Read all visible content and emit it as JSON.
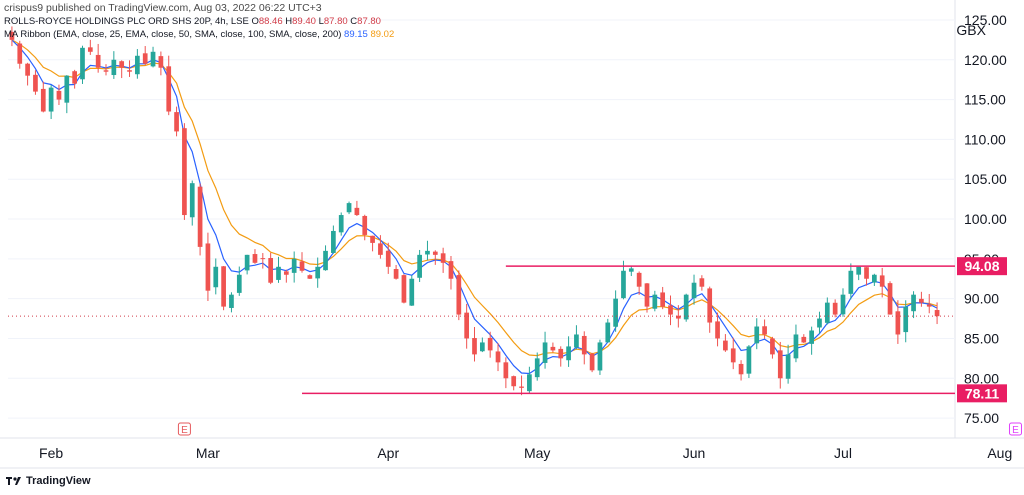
{
  "publisher_line": "crispus9 published on TradingView.com, Aug 03, 2022 06:22 UTC+3",
  "symbol_line": {
    "name": "ROLLS-ROYCE HOLDINGS PLC ORD SHS 20P, 4h, LSE",
    "o_label": "O",
    "o": "88.46",
    "h_label": "H",
    "h": "89.40",
    "l_label": "L",
    "l": "87.80",
    "c_label": "C",
    "c": "87.80"
  },
  "ma_line": {
    "label": "MA Ribbon (EMA, close, 25, EMA, close, 50, SMA, close, 100, SMA, close, 200)",
    "v1": "89.15",
    "v2": "89.02"
  },
  "footer_brand": "TradingView",
  "colors": {
    "up": "#26a69a",
    "down": "#ef5350",
    "ema": "#2962ff",
    "sma": "#f39c12",
    "level": "#e91e63",
    "level_label_bg": "#e91e63",
    "price_marker": "#d13b47",
    "grid": "#f0f3fa",
    "earnings": "#e5595c",
    "earnings_future": "#e040fb"
  },
  "chart_data": {
    "type": "candlestick",
    "currency": "GBX",
    "ylim": [
      72.5,
      126.5
    ],
    "y_ticks": [
      "125.00",
      "120.00",
      "115.00",
      "110.00",
      "105.00",
      "100.00",
      "95.00",
      "90.00",
      "85.00",
      "80.00",
      "75.00"
    ],
    "y_tick_values": [
      125,
      120,
      115,
      110,
      105,
      100,
      95,
      90,
      85,
      80,
      75
    ],
    "x_labels": [
      "Feb",
      "Mar",
      "Apr",
      "May",
      "Jun",
      "Jul",
      "Aug"
    ],
    "x_label_index": [
      5,
      25,
      48,
      67,
      87,
      106,
      126
    ],
    "levels": [
      {
        "value": 94.08,
        "label": "94.08",
        "start_index": 63
      },
      {
        "value": 78.11,
        "label": "78.11",
        "start_index": 37
      }
    ],
    "last_price": 87.8,
    "earnings_markers": [
      {
        "index": 22,
        "label": "E",
        "future": false
      },
      {
        "index": 128,
        "label": "E",
        "future": true
      }
    ],
    "close": [
      122.5,
      119.5,
      118.0,
      116.0,
      113.5,
      116.5,
      115.0,
      118.0,
      117.0,
      121.5,
      121.0,
      119.0,
      118.5,
      120.0,
      119.0,
      118.5,
      120.5,
      119.5,
      121.0,
      119.0,
      113.5,
      111.0,
      100.5,
      104.5,
      96.5,
      91.0,
      94.0,
      89.0,
      90.5,
      93.0,
      95.5,
      94.5,
      95.0,
      92.0,
      94.0,
      93.0,
      95.0,
      93.5,
      92.5,
      94.0,
      96.0,
      98.5,
      100.5,
      102.0,
      100.5,
      98.0,
      97.0,
      95.5,
      94.0,
      92.5,
      89.5,
      92.5,
      95.5,
      96.0,
      95.5,
      94.5,
      92.5,
      88.0,
      85.0,
      83.0,
      84.5,
      83.5,
      82.0,
      80.0,
      79.0,
      78.8,
      80.5,
      82.5,
      84.5,
      83.5,
      82.5,
      84.0,
      85.5,
      83.0,
      81.0,
      84.5,
      87.0,
      90.0,
      93.5,
      93.8,
      91.5,
      89.0,
      90.5,
      89.0,
      88.0,
      87.5,
      90.5,
      92.0,
      91.5,
      87.0,
      85.0,
      83.5,
      82.0,
      80.5,
      84.0,
      86.5,
      85.5,
      83.0,
      80.0,
      83.0,
      85.5,
      84.5,
      86.0,
      87.5,
      89.5,
      88.0,
      90.5,
      93.5,
      94.0,
      92.5,
      93.0,
      91.5,
      88.0,
      85.5,
      89.0,
      90.5,
      89.5,
      89.0,
      87.8
    ]
  }
}
